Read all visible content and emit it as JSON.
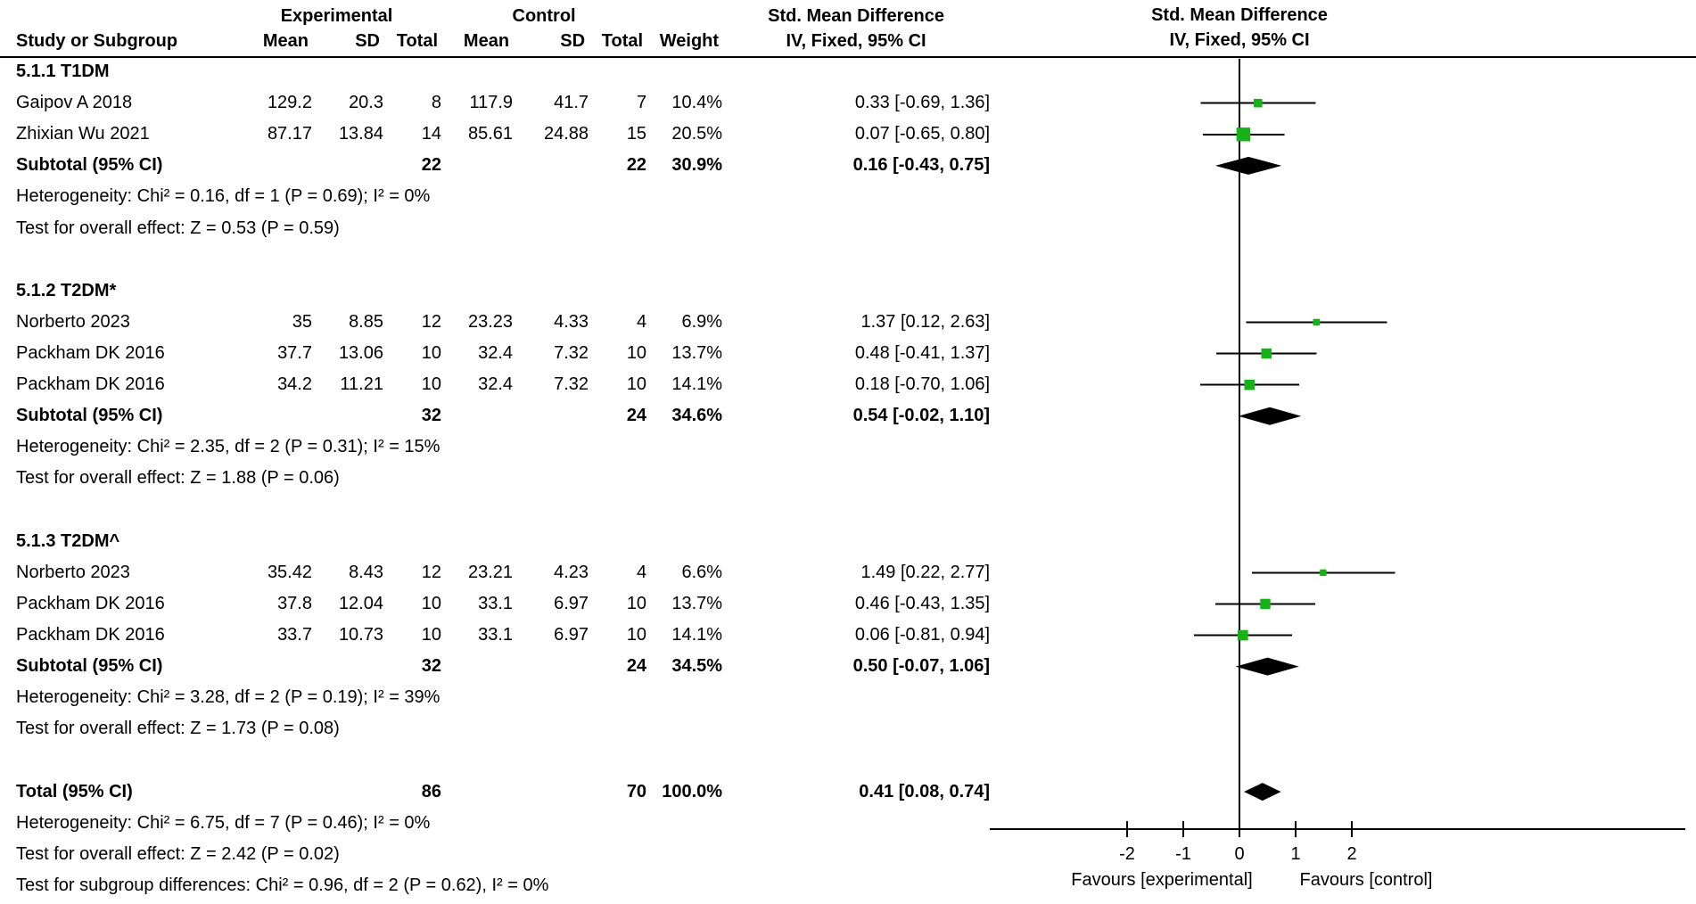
{
  "header": {
    "group1_label": "Experimental",
    "group2_label": "Control",
    "effect_header": "Std. Mean Difference",
    "effect_subheader": "IV, Fixed, 95% CI",
    "graph_header": "Std. Mean Difference",
    "graph_subheader": "IV, Fixed, 95% CI",
    "cols": [
      "Study or Subgroup",
      "Mean",
      "SD",
      "Total",
      "Mean",
      "SD",
      "Total",
      "Weight"
    ]
  },
  "chart_data": {
    "type": "forest",
    "effect_measure": "Std. Mean Difference",
    "method": "IV, Fixed, 95% CI",
    "colors": {
      "marker": "#17b217",
      "ci_line": "#000000",
      "diamond": "#000000",
      "text": "#000000"
    },
    "axis": {
      "ticks": [
        -2,
        -1,
        0,
        1,
        2
      ],
      "label_left": "Favours [experimental]",
      "label_right": "Favours [control]"
    },
    "rows": [
      {
        "type": "section",
        "label": "5.1.1 T1DM"
      },
      {
        "type": "study",
        "study": "Gaipov A 2018",
        "mean1": "129.2",
        "sd1": "20.3",
        "total1": "8",
        "mean2": "117.9",
        "sd2": "41.7",
        "total2": "7",
        "weight": "10.4%",
        "weight_num": 10.4,
        "ci_text": "0.33 [-0.69, 1.36]",
        "est": 0.33,
        "lo": -0.69,
        "hi": 1.36
      },
      {
        "type": "study",
        "study": "Zhixian Wu 2021",
        "mean1": "87.17",
        "sd1": "13.84",
        "total1": "14",
        "mean2": "85.61",
        "sd2": "24.88",
        "total2": "15",
        "weight": "20.5%",
        "weight_num": 20.5,
        "ci_text": "0.07 [-0.65, 0.80]",
        "est": 0.07,
        "lo": -0.65,
        "hi": 0.8
      },
      {
        "type": "subtotal",
        "label": "Subtotal (95% CI)",
        "total1": "22",
        "total2": "22",
        "weight": "30.9%",
        "ci_text": "0.16 [-0.43, 0.75]",
        "est": 0.16,
        "lo": -0.43,
        "hi": 0.75
      },
      {
        "type": "note",
        "label": "Heterogeneity: Chi² = 0.16, df = 1 (P = 0.69); I² = 0%"
      },
      {
        "type": "note",
        "label": "Test for overall effect: Z = 0.53 (P = 0.59)"
      },
      {
        "type": "blank"
      },
      {
        "type": "section",
        "label": "5.1.2 T2DM*"
      },
      {
        "type": "study",
        "study": "Norberto 2023",
        "mean1": "35",
        "sd1": "8.85",
        "total1": "12",
        "mean2": "23.23",
        "sd2": "4.33",
        "total2": "4",
        "weight": "6.9%",
        "weight_num": 6.9,
        "ci_text": "1.37 [0.12, 2.63]",
        "est": 1.37,
        "lo": 0.12,
        "hi": 2.63
      },
      {
        "type": "study",
        "study": "Packham DK 2016",
        "mean1": "37.7",
        "sd1": "13.06",
        "total1": "10",
        "mean2": "32.4",
        "sd2": "7.32",
        "total2": "10",
        "weight": "13.7%",
        "weight_num": 13.7,
        "ci_text": "0.48 [-0.41, 1.37]",
        "est": 0.48,
        "lo": -0.41,
        "hi": 1.37
      },
      {
        "type": "study",
        "study": "Packham DK 2016",
        "mean1": "34.2",
        "sd1": "11.21",
        "total1": "10",
        "mean2": "32.4",
        "sd2": "7.32",
        "total2": "10",
        "weight": "14.1%",
        "weight_num": 14.1,
        "ci_text": "0.18 [-0.70, 1.06]",
        "est": 0.18,
        "lo": -0.7,
        "hi": 1.06
      },
      {
        "type": "subtotal",
        "label": "Subtotal (95% CI)",
        "total1": "32",
        "total2": "24",
        "weight": "34.6%",
        "ci_text": "0.54 [-0.02, 1.10]",
        "est": 0.54,
        "lo": -0.02,
        "hi": 1.1
      },
      {
        "type": "note",
        "label": "Heterogeneity: Chi² = 2.35, df = 2 (P = 0.31); I² = 15%"
      },
      {
        "type": "note",
        "label": "Test for overall effect: Z = 1.88 (P = 0.06)"
      },
      {
        "type": "blank"
      },
      {
        "type": "section",
        "label": "5.1.3 T2DM^"
      },
      {
        "type": "study",
        "study": "Norberto 2023",
        "mean1": "35.42",
        "sd1": "8.43",
        "total1": "12",
        "mean2": "23.21",
        "sd2": "4.23",
        "total2": "4",
        "weight": "6.6%",
        "weight_num": 6.6,
        "ci_text": "1.49 [0.22, 2.77]",
        "est": 1.49,
        "lo": 0.22,
        "hi": 2.77
      },
      {
        "type": "study",
        "study": "Packham DK 2016",
        "mean1": "37.8",
        "sd1": "12.04",
        "total1": "10",
        "mean2": "33.1",
        "sd2": "6.97",
        "total2": "10",
        "weight": "13.7%",
        "weight_num": 13.7,
        "ci_text": "0.46 [-0.43, 1.35]",
        "est": 0.46,
        "lo": -0.43,
        "hi": 1.35
      },
      {
        "type": "study",
        "study": "Packham DK 2016",
        "mean1": "33.7",
        "sd1": "10.73",
        "total1": "10",
        "mean2": "33.1",
        "sd2": "6.97",
        "total2": "10",
        "weight": "14.1%",
        "weight_num": 14.1,
        "ci_text": "0.06 [-0.81, 0.94]",
        "est": 0.06,
        "lo": -0.81,
        "hi": 0.94
      },
      {
        "type": "subtotal",
        "label": "Subtotal (95% CI)",
        "total1": "32",
        "total2": "24",
        "weight": "34.5%",
        "ci_text": "0.50 [-0.07, 1.06]",
        "est": 0.5,
        "lo": -0.07,
        "hi": 1.06
      },
      {
        "type": "note",
        "label": "Heterogeneity: Chi² = 3.28, df = 2 (P = 0.19); I² = 39%"
      },
      {
        "type": "note",
        "label": "Test for overall effect: Z = 1.73 (P = 0.08)"
      },
      {
        "type": "blank"
      },
      {
        "type": "total",
        "label": "Total (95% CI)",
        "total1": "86",
        "total2": "70",
        "weight": "100.0%",
        "ci_text": "0.41 [0.08, 0.74]",
        "est": 0.41,
        "lo": 0.08,
        "hi": 0.74
      },
      {
        "type": "note",
        "label": "Heterogeneity: Chi² = 6.75, df = 7 (P = 0.46); I² = 0%"
      },
      {
        "type": "note",
        "label": "Test for overall effect: Z = 2.42 (P = 0.02)"
      },
      {
        "type": "note",
        "label": "Test for subgroup differences: Chi² = 0.96, df = 2 (P = 0.62), I² = 0%"
      }
    ]
  }
}
